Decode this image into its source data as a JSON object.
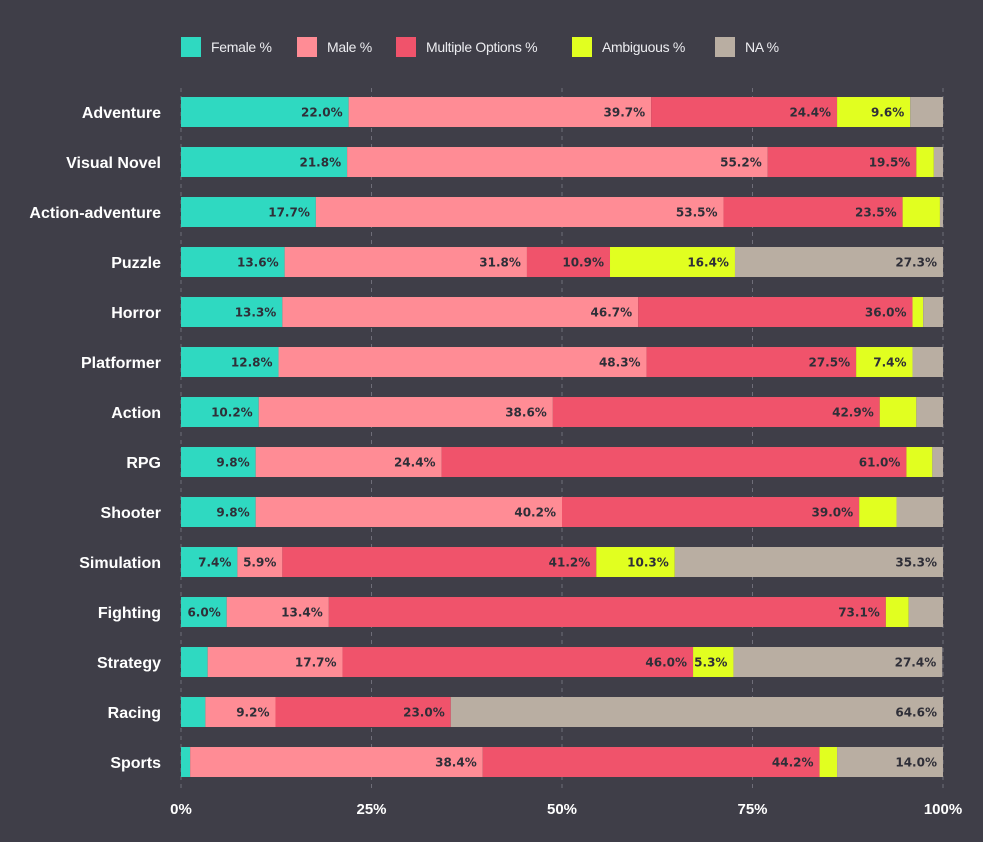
{
  "chart_data": {
    "type": "bar",
    "orientation": "horizontal",
    "stacked": true,
    "title": "",
    "xlabel": "",
    "ylabel": "",
    "xlim": [
      0,
      100
    ],
    "x_ticks": [
      "0%",
      "25%",
      "50%",
      "75%",
      "100%"
    ],
    "grid": "vertical dashed",
    "legend_position": "top",
    "categories": [
      "Adventure",
      "Visual Novel",
      "Action-adventure",
      "Puzzle",
      "Horror",
      "Platformer",
      "Action",
      "RPG",
      "Shooter",
      "Simulation",
      "Fighting",
      "Strategy",
      "Racing",
      "Sports"
    ],
    "series": [
      {
        "name": "Female %",
        "color": "#2fd9c1",
        "values": [
          22.0,
          21.8,
          17.7,
          13.6,
          13.3,
          12.8,
          10.2,
          9.8,
          9.8,
          7.4,
          6.0,
          3.5,
          3.2,
          1.2
        ],
        "labels": [
          "22.0%",
          "21.8%",
          "17.7%",
          "13.6%",
          "13.3%",
          "12.8%",
          "10.2%",
          "9.8%",
          "9.8%",
          "7.4%",
          "6.0%",
          null,
          null,
          null
        ]
      },
      {
        "name": "Male %",
        "color": "#ff8c95",
        "values": [
          39.7,
          55.2,
          53.5,
          31.8,
          46.7,
          48.3,
          38.6,
          24.4,
          40.2,
          5.9,
          13.4,
          17.7,
          9.2,
          38.4
        ],
        "labels": [
          "39.7%",
          "55.2%",
          "53.5%",
          "31.8%",
          "46.7%",
          "48.3%",
          "38.6%",
          "24.4%",
          "40.2%",
          "5.9%",
          "13.4%",
          "17.7%",
          "9.2%",
          "38.4%"
        ]
      },
      {
        "name": "Multiple Options %",
        "color": "#f0536b",
        "values": [
          24.4,
          19.5,
          23.5,
          10.9,
          36.0,
          27.5,
          42.9,
          61.0,
          39.0,
          41.2,
          73.1,
          46.0,
          23.0,
          44.2
        ],
        "labels": [
          "24.4%",
          "19.5%",
          "23.5%",
          "10.9%",
          "36.0%",
          "27.5%",
          "42.9%",
          "61.0%",
          "39.0%",
          "41.2%",
          "73.1%",
          "46.0%",
          "23.0%",
          "44.2%"
        ]
      },
      {
        "name": "Ambiguous %",
        "color": "#e1ff20",
        "values": [
          9.6,
          2.3,
          4.9,
          16.4,
          1.4,
          7.4,
          4.8,
          3.4,
          4.9,
          10.3,
          3.0,
          5.3,
          0.0,
          2.3
        ],
        "labels": [
          "9.6%",
          null,
          null,
          "16.4%",
          null,
          "7.4%",
          null,
          null,
          null,
          "10.3%",
          null,
          "5.3%",
          null,
          null
        ]
      },
      {
        "name": "NA %",
        "color": "#b9aea2",
        "values": [
          4.3,
          1.2,
          0.4,
          27.3,
          2.6,
          4.0,
          3.5,
          1.4,
          6.1,
          35.3,
          4.5,
          27.4,
          64.6,
          14.0
        ],
        "labels": [
          null,
          null,
          null,
          "27.3%",
          null,
          null,
          null,
          null,
          null,
          "35.3%",
          null,
          "27.4%",
          "64.6%",
          "14.0%"
        ]
      }
    ],
    "colors": {
      "background": "#3f3e48",
      "grid": "#6e6d78",
      "category_text": "#ffffff",
      "data_label_text": "#2f2f38"
    }
  }
}
